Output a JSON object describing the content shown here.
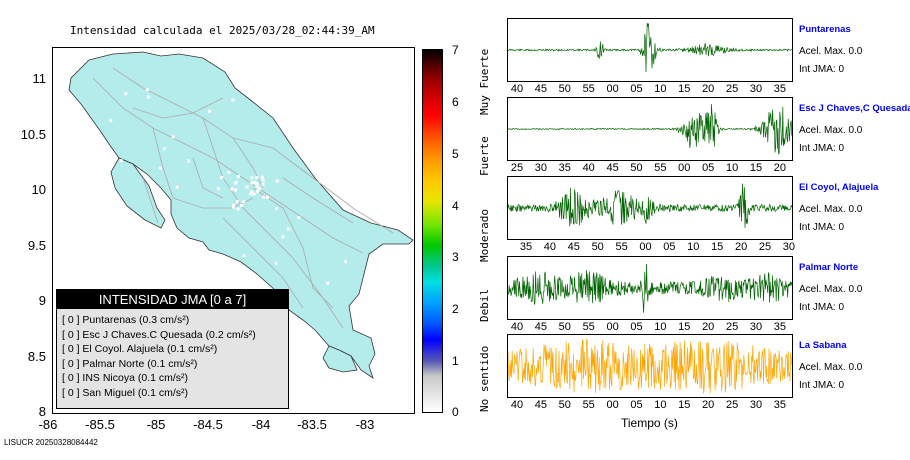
{
  "map": {
    "title": "Intensidad calculada el 2025/03/28_02:44:39_AM",
    "y_ticks": [
      "11",
      "10.5",
      "10",
      "9.5",
      "9",
      "8.5",
      "8"
    ],
    "x_ticks": [
      "-86",
      "-85.5",
      "-85",
      "-84.5",
      "-84",
      "-83.5",
      "-83"
    ],
    "land_color": "#b4ecec",
    "road_color": "#aaaaaa"
  },
  "colorbar": {
    "ticks": [
      "0",
      "1",
      "2",
      "3",
      "4",
      "5",
      "6",
      "7"
    ],
    "labels": [
      "No sentido",
      "Debil",
      "Moderado",
      "Fuerte",
      "Muy Fuerte"
    ]
  },
  "legend": {
    "title": "INTENSIDAD JMA [0 a 7]",
    "items": [
      "[ 0 ]  Puntarenas (0.3 cm/s²)",
      "[ 0 ]  Esc J Chaves.C Quesada (0.2 cm/s²)",
      "[ 0 ]  El Coyol. Alajuela (0.1 cm/s²)",
      "[ 0 ]  Palmar Norte (0.1 cm/s²)",
      "[ 0 ]  INS Nicoya (0.1 cm/s²)",
      "[ 0 ]  San Miguel (0.1 cm/s²)"
    ]
  },
  "footer": "LISUCR 20250328084442",
  "traces": [
    {
      "name": "Puntarenas",
      "accel": "Acel. Max. 0.0",
      "jma": "Int JMA: 0",
      "color": "#006400",
      "ticks": [
        "40",
        "45",
        "50",
        "55",
        "00",
        "05",
        "10",
        "15",
        "20",
        "25",
        "30",
        "35"
      ]
    },
    {
      "name": "Esc J Chaves,C Quesada",
      "accel": "Acel. Max. 0.0",
      "jma": "Int JMA: 0",
      "color": "#006400",
      "ticks": [
        "25",
        "30",
        "35",
        "40",
        "45",
        "50",
        "55",
        "00",
        "05",
        "10",
        "15",
        "20"
      ]
    },
    {
      "name": "El Coyol, Alajuela",
      "accel": "Acel. Max. 0.0",
      "jma": "Int JMA: 0",
      "color": "#006400",
      "ticks": [
        "35",
        "40",
        "45",
        "50",
        "55",
        "00",
        "05",
        "10",
        "15",
        "20",
        "25",
        "30"
      ]
    },
    {
      "name": "Palmar Norte",
      "accel": "Acel. Max. 0.0",
      "jma": "Int JMA: 0",
      "color": "#006400",
      "ticks": [
        "40",
        "45",
        "50",
        "55",
        "00",
        "05",
        "10",
        "15",
        "20",
        "25",
        "30",
        "35"
      ]
    },
    {
      "name": "La Sabana",
      "accel": "Acel. Max. 0.0",
      "jma": "Int JMA: 0",
      "color": "#ffa500",
      "ticks": [
        "40",
        "45",
        "50",
        "55",
        "00",
        "05",
        "10",
        "15",
        "20",
        "25",
        "30",
        "35"
      ]
    }
  ],
  "xaxis_label": "Tiempo (s)"
}
